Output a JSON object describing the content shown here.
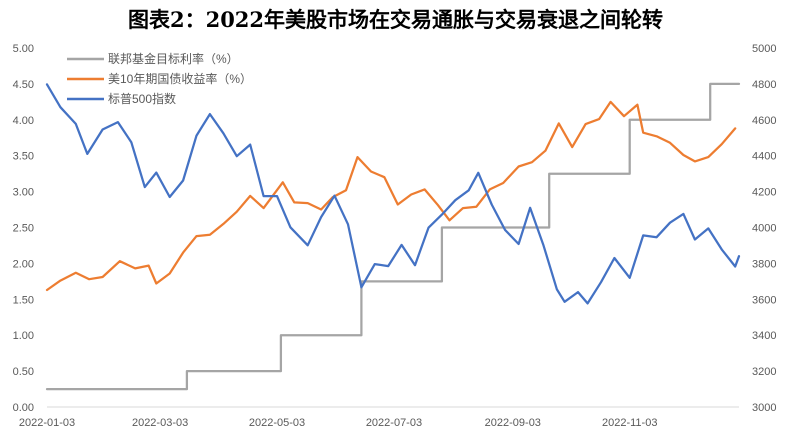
{
  "chart_data": {
    "type": "line",
    "title": "图表2：2022年美股市场在交易通胀与交易衰退之间轮转",
    "x": {
      "range": [
        "2022-01-03",
        "2022-12-30"
      ],
      "tick_labels": [
        "2022-01-03",
        "2022-03-03",
        "2022-05-03",
        "2022-07-03",
        "2022-09-03",
        "2022-11-03"
      ]
    },
    "y_left": {
      "ylim": [
        0,
        5
      ],
      "tick_labels": [
        "0.00",
        "0.50",
        "1.00",
        "1.50",
        "2.00",
        "2.50",
        "3.00",
        "3.50",
        "4.00",
        "4.50",
        "5.00"
      ]
    },
    "y_right": {
      "ylim": [
        3000,
        5000
      ],
      "tick_labels": [
        "3000",
        "3200",
        "3400",
        "3600",
        "3800",
        "4000",
        "4200",
        "4400",
        "4600",
        "4800",
        "5000"
      ]
    },
    "grid": false,
    "legend_position": "top-left",
    "series": [
      {
        "name": "联邦基金目标利率（%）",
        "axis": "left",
        "color": "#a5a5a5",
        "step": true,
        "points": [
          [
            "2022-01-03",
            0.25
          ],
          [
            "2022-03-17",
            0.25
          ],
          [
            "2022-03-17",
            0.5
          ],
          [
            "2022-05-05",
            0.5
          ],
          [
            "2022-05-05",
            1.0
          ],
          [
            "2022-06-16",
            1.0
          ],
          [
            "2022-06-16",
            1.75
          ],
          [
            "2022-07-28",
            1.75
          ],
          [
            "2022-07-28",
            2.5
          ],
          [
            "2022-09-22",
            2.5
          ],
          [
            "2022-09-22",
            3.25
          ],
          [
            "2022-11-03",
            3.25
          ],
          [
            "2022-11-03",
            4.0
          ],
          [
            "2022-12-15",
            4.0
          ],
          [
            "2022-12-15",
            4.5
          ],
          [
            "2022-12-30",
            4.5
          ]
        ]
      },
      {
        "name": "美10年期国债收益率（%）",
        "axis": "left",
        "color": "#ed7d31",
        "points": [
          [
            "2022-01-03",
            1.63
          ],
          [
            "2022-01-10",
            1.76
          ],
          [
            "2022-01-18",
            1.87
          ],
          [
            "2022-01-25",
            1.78
          ],
          [
            "2022-02-01",
            1.81
          ],
          [
            "2022-02-10",
            2.03
          ],
          [
            "2022-02-18",
            1.93
          ],
          [
            "2022-02-25",
            1.97
          ],
          [
            "2022-03-01",
            1.72
          ],
          [
            "2022-03-08",
            1.86
          ],
          [
            "2022-03-15",
            2.15
          ],
          [
            "2022-03-22",
            2.38
          ],
          [
            "2022-03-29",
            2.4
          ],
          [
            "2022-04-05",
            2.55
          ],
          [
            "2022-04-12",
            2.72
          ],
          [
            "2022-04-19",
            2.94
          ],
          [
            "2022-04-26",
            2.77
          ],
          [
            "2022-05-06",
            3.13
          ],
          [
            "2022-05-12",
            2.85
          ],
          [
            "2022-05-19",
            2.84
          ],
          [
            "2022-05-26",
            2.75
          ],
          [
            "2022-06-01",
            2.92
          ],
          [
            "2022-06-08",
            3.02
          ],
          [
            "2022-06-14",
            3.48
          ],
          [
            "2022-06-21",
            3.28
          ],
          [
            "2022-06-28",
            3.2
          ],
          [
            "2022-07-05",
            2.82
          ],
          [
            "2022-07-12",
            2.96
          ],
          [
            "2022-07-19",
            3.03
          ],
          [
            "2022-07-26",
            2.81
          ],
          [
            "2022-08-01",
            2.6
          ],
          [
            "2022-08-08",
            2.77
          ],
          [
            "2022-08-15",
            2.79
          ],
          [
            "2022-08-22",
            3.03
          ],
          [
            "2022-08-29",
            3.12
          ],
          [
            "2022-09-06",
            3.35
          ],
          [
            "2022-09-13",
            3.41
          ],
          [
            "2022-09-20",
            3.57
          ],
          [
            "2022-09-27",
            3.95
          ],
          [
            "2022-10-04",
            3.62
          ],
          [
            "2022-10-11",
            3.94
          ],
          [
            "2022-10-18",
            4.01
          ],
          [
            "2022-10-24",
            4.25
          ],
          [
            "2022-10-31",
            4.05
          ],
          [
            "2022-11-07",
            4.21
          ],
          [
            "2022-11-10",
            3.82
          ],
          [
            "2022-11-17",
            3.77
          ],
          [
            "2022-11-24",
            3.68
          ],
          [
            "2022-12-01",
            3.51
          ],
          [
            "2022-12-07",
            3.42
          ],
          [
            "2022-12-14",
            3.48
          ],
          [
            "2022-12-21",
            3.66
          ],
          [
            "2022-12-28",
            3.88
          ]
        ]
      },
      {
        "name": "标普500指数",
        "axis": "right",
        "color": "#4472c4",
        "points": [
          [
            "2022-01-03",
            4797
          ],
          [
            "2022-01-10",
            4670
          ],
          [
            "2022-01-18",
            4577
          ],
          [
            "2022-01-24",
            4410
          ],
          [
            "2022-02-01",
            4546
          ],
          [
            "2022-02-09",
            4587
          ],
          [
            "2022-02-16",
            4475
          ],
          [
            "2022-02-23",
            4225
          ],
          [
            "2022-03-01",
            4306
          ],
          [
            "2022-03-08",
            4170
          ],
          [
            "2022-03-15",
            4262
          ],
          [
            "2022-03-22",
            4512
          ],
          [
            "2022-03-29",
            4632
          ],
          [
            "2022-04-05",
            4525
          ],
          [
            "2022-04-12",
            4397
          ],
          [
            "2022-04-19",
            4462
          ],
          [
            "2022-04-26",
            4175
          ],
          [
            "2022-05-03",
            4175
          ],
          [
            "2022-05-10",
            4001
          ],
          [
            "2022-05-19",
            3901
          ],
          [
            "2022-05-26",
            4058
          ],
          [
            "2022-06-02",
            4177
          ],
          [
            "2022-06-09",
            4018
          ],
          [
            "2022-06-16",
            3667
          ],
          [
            "2022-06-23",
            3796
          ],
          [
            "2022-06-30",
            3785
          ],
          [
            "2022-07-07",
            3903
          ],
          [
            "2022-07-14",
            3790
          ],
          [
            "2022-07-21",
            3999
          ],
          [
            "2022-07-28",
            4072
          ],
          [
            "2022-08-04",
            4152
          ],
          [
            "2022-08-11",
            4207
          ],
          [
            "2022-08-16",
            4305
          ],
          [
            "2022-08-23",
            4128
          ],
          [
            "2022-08-30",
            3986
          ],
          [
            "2022-09-06",
            3908
          ],
          [
            "2022-09-12",
            4110
          ],
          [
            "2022-09-19",
            3900
          ],
          [
            "2022-09-26",
            3655
          ],
          [
            "2022-09-30",
            3586
          ],
          [
            "2022-10-07",
            3640
          ],
          [
            "2022-10-12",
            3577
          ],
          [
            "2022-10-19",
            3695
          ],
          [
            "2022-10-26",
            3830
          ],
          [
            "2022-11-03",
            3720
          ],
          [
            "2022-11-10",
            3956
          ],
          [
            "2022-11-17",
            3946
          ],
          [
            "2022-11-24",
            4027
          ],
          [
            "2022-12-01",
            4076
          ],
          [
            "2022-12-07",
            3933
          ],
          [
            "2022-12-14",
            3995
          ],
          [
            "2022-12-21",
            3878
          ],
          [
            "2022-12-28",
            3783
          ],
          [
            "2022-12-30",
            3840
          ]
        ]
      }
    ]
  }
}
